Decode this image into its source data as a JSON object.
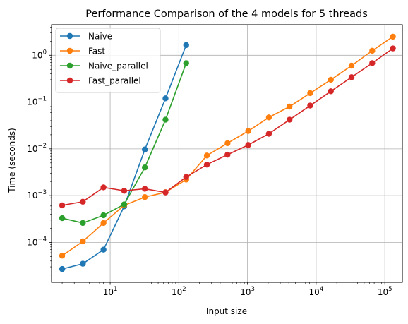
{
  "chart_data": {
    "type": "line",
    "title": "Performance Comparison of the 4 models for 5 threads",
    "xlabel": "Input size",
    "ylabel": "Time (seconds)",
    "xscale": "log",
    "yscale": "log",
    "xlim": [
      1.4,
      180000
    ],
    "ylim": [
      1.4e-05,
      4.5
    ],
    "grid": true,
    "legend_position": "top-left",
    "x_ticks": [
      {
        "value": 10,
        "base": "10",
        "exp": "1"
      },
      {
        "value": 100,
        "base": "10",
        "exp": "2"
      },
      {
        "value": 1000,
        "base": "10",
        "exp": "3"
      },
      {
        "value": 10000,
        "base": "10",
        "exp": "4"
      },
      {
        "value": 100000,
        "base": "10",
        "exp": "5"
      }
    ],
    "y_ticks": [
      {
        "value": 0.0001,
        "base": "10",
        "exp": "−4"
      },
      {
        "value": 0.001,
        "base": "10",
        "exp": "−3"
      },
      {
        "value": 0.01,
        "base": "10",
        "exp": "−2"
      },
      {
        "value": 0.1,
        "base": "10",
        "exp": "−1"
      },
      {
        "value": 1,
        "base": "10",
        "exp": "0"
      }
    ],
    "series": [
      {
        "name": "Naive",
        "color": "#1f77b4",
        "x": [
          2,
          4,
          8,
          16,
          32,
          64,
          128
        ],
        "y": [
          2.7e-05,
          3.5e-05,
          7e-05,
          0.00059,
          0.0097,
          0.12,
          1.65
        ]
      },
      {
        "name": "Fast",
        "color": "#ff7f0e",
        "x": [
          2,
          4,
          8,
          16,
          32,
          64,
          128,
          256,
          512,
          1024,
          2048,
          4096,
          8192,
          16384,
          32768,
          65536,
          131072
        ],
        "y": [
          5.2e-05,
          0.000105,
          0.00026,
          0.00062,
          0.00093,
          0.00118,
          0.0022,
          0.0072,
          0.0132,
          0.024,
          0.047,
          0.08,
          0.155,
          0.3,
          0.6,
          1.25,
          2.5
        ]
      },
      {
        "name": "Naive_parallel",
        "color": "#2ca02c",
        "x": [
          2,
          4,
          8,
          16,
          32,
          64,
          128
        ],
        "y": [
          0.00033,
          0.00026,
          0.00038,
          0.00065,
          0.004,
          0.042,
          0.68
        ]
      },
      {
        "name": "Fast_parallel",
        "color": "#d62728",
        "x": [
          2,
          4,
          8,
          16,
          32,
          64,
          128,
          256,
          512,
          1024,
          2048,
          4096,
          8192,
          16384,
          32768,
          65536,
          131072
        ],
        "y": [
          0.00062,
          0.00074,
          0.0015,
          0.00127,
          0.0014,
          0.00117,
          0.0025,
          0.0046,
          0.0075,
          0.0121,
          0.021,
          0.042,
          0.084,
          0.17,
          0.34,
          0.68,
          1.4
        ]
      }
    ]
  }
}
